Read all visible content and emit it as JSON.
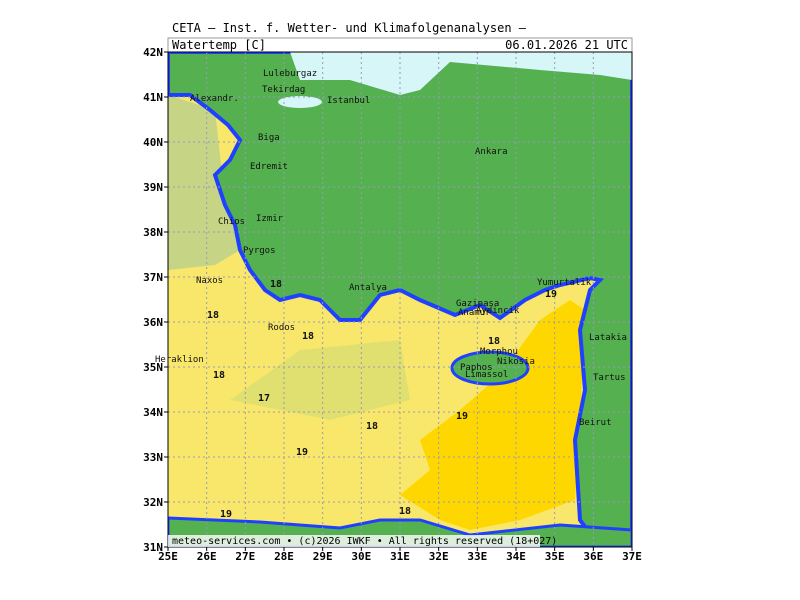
{
  "header": {
    "institute": "CETA – Inst. f. Wetter- und Klimafolgenanalysen –",
    "parameter": "Watertemp_[C]",
    "valid_time": "06.01.2026 21 UTC"
  },
  "footer": "meteo-services.com • (c)2026 IWKF • All rights reserved (18+027)",
  "map": {
    "lon_range": [
      25,
      37
    ],
    "lat_range": [
      31,
      42
    ],
    "lon_ticks": [
      {
        "value": 25,
        "label": "25E"
      },
      {
        "value": 26,
        "label": "26E"
      },
      {
        "value": 27,
        "label": "27E"
      },
      {
        "value": 28,
        "label": "28E"
      },
      {
        "value": 29,
        "label": "29E"
      },
      {
        "value": 30,
        "label": "30E"
      },
      {
        "value": 31,
        "label": "31E"
      },
      {
        "value": 32,
        "label": "32E"
      },
      {
        "value": 33,
        "label": "33E"
      },
      {
        "value": 34,
        "label": "34E"
      },
      {
        "value": 35,
        "label": "35E"
      },
      {
        "value": 36,
        "label": "36E"
      },
      {
        "value": 37,
        "label": "37E"
      }
    ],
    "lat_ticks": [
      {
        "value": 31,
        "label": "31N"
      },
      {
        "value": 32,
        "label": "32N"
      },
      {
        "value": 33,
        "label": "33N"
      },
      {
        "value": 34,
        "label": "34N"
      },
      {
        "value": 35,
        "label": "35N"
      },
      {
        "value": 36,
        "label": "36N"
      },
      {
        "value": 37,
        "label": "37N"
      },
      {
        "value": 38,
        "label": "38N"
      },
      {
        "value": 39,
        "label": "39N"
      },
      {
        "value": 40,
        "label": "40N"
      },
      {
        "value": 41,
        "label": "41N"
      },
      {
        "value": 42,
        "label": "42N"
      }
    ],
    "places": [
      "Luleburgaz",
      "Tekirdag",
      "Istanbul",
      "Alexandr.",
      "Biga",
      "Edremit",
      "Ankara",
      "Izmir",
      "Chios",
      "Pyrgos",
      "Naxos",
      "Antalya",
      "Gazipasa",
      "Anamur",
      "Aydincik",
      "Yumurtalik",
      "Latakia",
      "Tartus",
      "Beirut",
      "Heraklion",
      "Morphou",
      "Nikosia",
      "Paphos",
      "Limassol",
      "Rodos"
    ],
    "contour_labels": [
      18,
      18,
      18,
      17,
      18,
      19,
      19,
      18,
      19,
      18,
      19,
      18
    ]
  }
}
